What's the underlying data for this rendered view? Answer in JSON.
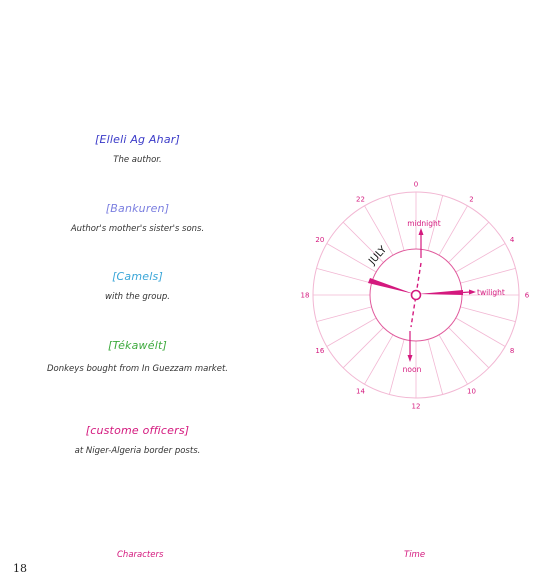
{
  "characters": [
    {
      "name": "[Elleli Ag Ahar]",
      "description": "The author.",
      "color": "#3a3ac8"
    },
    {
      "name": "[Bankuren]",
      "description": "Author's mother's sister's sons.",
      "color": "#7b7fe0"
    },
    {
      "name": "[Camels]",
      "description": "with the group.",
      "color": "#3aa6d8"
    },
    {
      "name": "[Tékawélt]",
      "description": "Donkeys bought from In Guezzam market.",
      "color": "#3eaa3e"
    },
    {
      "name": "[custome officers]",
      "description": "at Niger-Algeria border posts.",
      "color": "#d4197e"
    }
  ],
  "footer": {
    "characters_label": "Characters",
    "time_label": "Time"
  },
  "page_number": "18",
  "clock": {
    "month_label": "JULY",
    "hour_labels": [
      "0",
      "2",
      "4",
      "6",
      "8",
      "10",
      "12",
      "14",
      "16",
      "18",
      "20",
      "22"
    ],
    "markers": {
      "midnight": "midnight",
      "twilight": "twilight",
      "noon": "noon"
    },
    "accent_color": "#d4197e",
    "ring_color": "#f2b7d3"
  }
}
